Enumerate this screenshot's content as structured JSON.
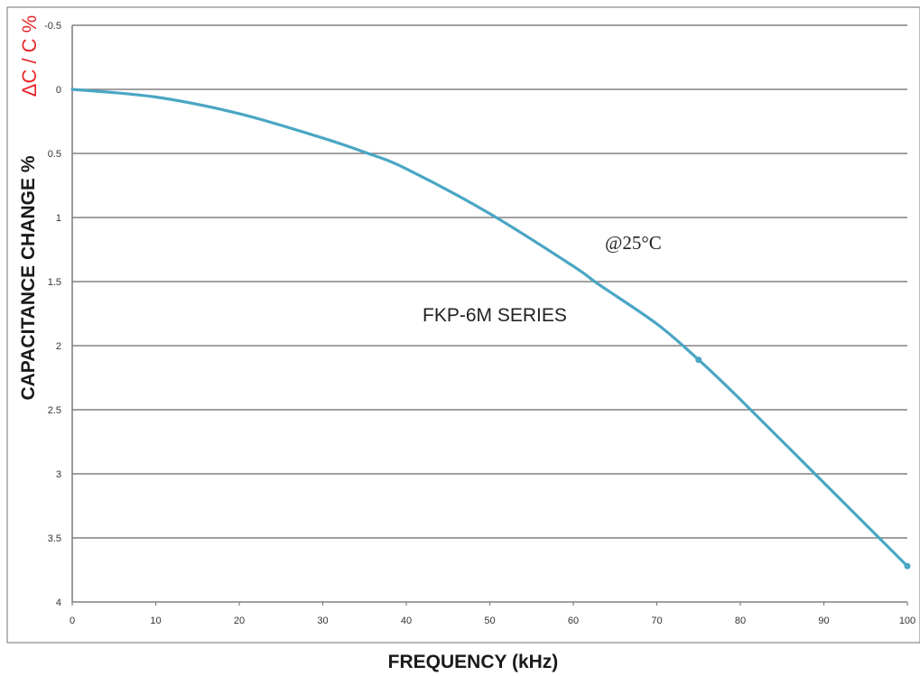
{
  "chart_data": {
    "type": "line",
    "ylabel_main": "CAPACITANCE CHANGE  %",
    "ylabel_secondary": "ΔC / C %",
    "xlabel": "FREQUENCY (kHz)",
    "xlim": [
      0,
      100
    ],
    "ylim": [
      -0.5,
      4
    ],
    "y_inverted": true,
    "grid": true,
    "x_ticks": [
      "0",
      "10",
      "20",
      "30",
      "40",
      "50",
      "60",
      "70",
      "80",
      "90",
      "100"
    ],
    "y_ticks": [
      "-0.5",
      "0",
      "0.5",
      "1",
      "1.5",
      "2",
      "2.5",
      "3",
      "3.5",
      "4"
    ],
    "annotations": [
      "@25°C",
      "FKP-6M SERIES"
    ],
    "series": [
      {
        "x": [
          0,
          10,
          20,
          30,
          35,
          40,
          50,
          60,
          63,
          70,
          75,
          80,
          90,
          100
        ],
        "y": [
          0.0,
          0.06,
          0.19,
          0.38,
          0.49,
          0.62,
          0.97,
          1.38,
          1.52,
          1.83,
          2.11,
          2.42,
          3.07,
          3.72
        ]
      }
    ],
    "marker_points": [
      [
        75,
        2.11
      ],
      [
        100,
        3.72
      ]
    ],
    "colors": {
      "line": "#4aa6c4",
      "grid": "#808080",
      "ylabel_secondary": "#e8262b"
    }
  }
}
